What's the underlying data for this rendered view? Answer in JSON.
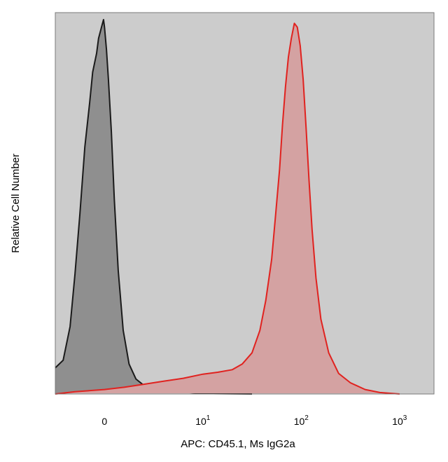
{
  "chart_data": {
    "type": "area",
    "xlabel": "APC: CD45.1, Ms IgG2a",
    "ylabel": "Relative Cell Number",
    "x_scale": "biexponential",
    "xlim": [
      -0.5,
      3.35
    ],
    "ylim": [
      0,
      100
    ],
    "grid": false,
    "background_color": "#cccccc",
    "ticks": [
      {
        "base": "0",
        "exp": "",
        "value": 0
      },
      {
        "base": "10",
        "exp": "1",
        "value": 1
      },
      {
        "base": "10",
        "exp": "2",
        "value": 2
      },
      {
        "base": "10",
        "exp": "3",
        "value": 3
      }
    ],
    "series": [
      {
        "color": "#1a1a1a",
        "fill": "#8f8f8f",
        "x": [
          -0.5,
          -0.42,
          -0.35,
          -0.3,
          -0.25,
          -0.2,
          -0.15,
          -0.12,
          -0.08,
          -0.06,
          -0.03,
          -0.01,
          0.0,
          0.02,
          0.04,
          0.07,
          0.1,
          0.14,
          0.19,
          0.25,
          0.32,
          0.4,
          0.5,
          0.6,
          0.75,
          0.9,
          1.1,
          1.5
        ],
        "y": [
          7,
          9,
          18,
          32,
          48,
          66,
          78,
          86,
          91,
          95,
          98,
          100,
          98,
          92,
          84,
          70,
          52,
          33,
          17,
          8,
          4,
          2.3,
          1.5,
          1,
          0.6,
          0.3,
          0.1,
          0
        ]
      },
      {
        "color": "#e0221f",
        "fill": "#d4a2a2",
        "x": [
          -0.5,
          -0.3,
          0.0,
          0.2,
          0.4,
          0.6,
          0.8,
          1.0,
          1.15,
          1.3,
          1.4,
          1.5,
          1.58,
          1.64,
          1.7,
          1.74,
          1.78,
          1.81,
          1.84,
          1.87,
          1.9,
          1.93,
          1.96,
          1.99,
          2.02,
          2.05,
          2.08,
          2.11,
          2.15,
          2.2,
          2.28,
          2.38,
          2.5,
          2.65,
          2.8,
          3.0
        ],
        "y": [
          0,
          0.6,
          1.2,
          1.8,
          2.6,
          3.4,
          4.2,
          5.3,
          5.8,
          6.5,
          8,
          11,
          17,
          25,
          36,
          48,
          60,
          72,
          82,
          90,
          95,
          99,
          98,
          93,
          84,
          71,
          57,
          44,
          31,
          20,
          11,
          5.5,
          3,
          1.2,
          0.4,
          0
        ]
      }
    ]
  }
}
